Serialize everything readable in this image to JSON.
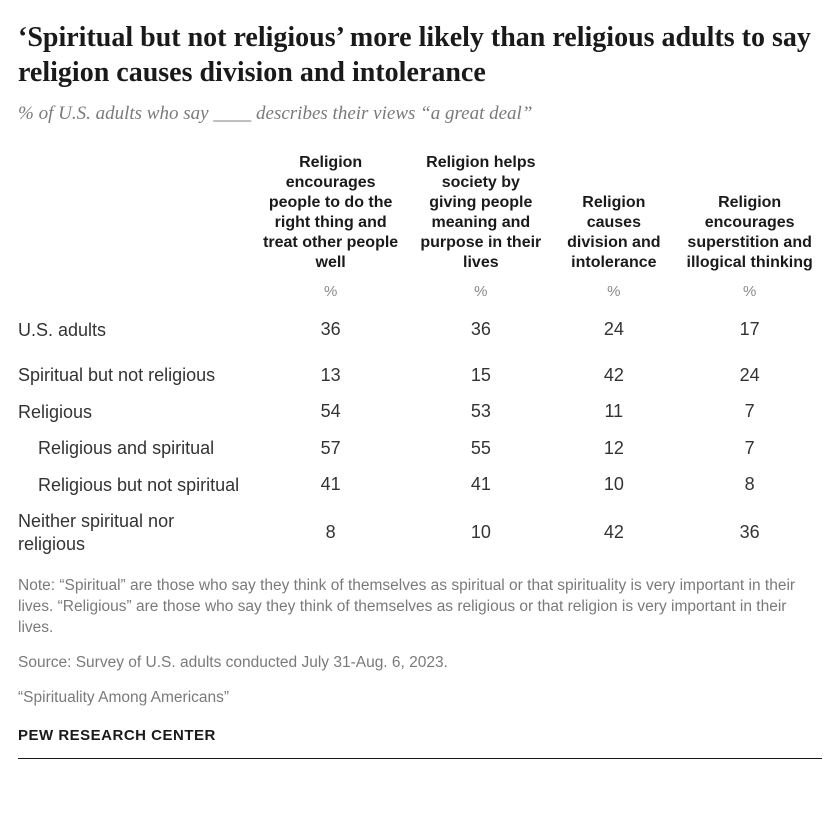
{
  "title": "‘Spiritual but not religious’ more likely than religious adults to say religion causes division and intolerance",
  "subtitle": "% of U.S. adults who say ____ describes their views “a great deal”",
  "table": {
    "columns": [
      "Religion encourages people to do the right thing and treat other people well",
      "Religion helps society by giving people meaning and purpose in their lives",
      "Religion causes division and intolerance",
      "Religion encourages superstition and illogical thinking"
    ],
    "pctLabel": "%",
    "rows": [
      {
        "label": "U.S. adults",
        "indent": false,
        "gap": false,
        "values": [
          36,
          36,
          24,
          17
        ]
      },
      {
        "label": "Spiritual but not religious",
        "indent": false,
        "gap": true,
        "values": [
          13,
          15,
          42,
          24
        ]
      },
      {
        "label": "Religious",
        "indent": false,
        "gap": false,
        "values": [
          54,
          53,
          11,
          7
        ]
      },
      {
        "label": "Religious and spiritual",
        "indent": true,
        "gap": false,
        "values": [
          57,
          55,
          12,
          7
        ]
      },
      {
        "label": "Religious but not spiritual",
        "indent": true,
        "gap": false,
        "values": [
          41,
          41,
          10,
          8
        ]
      },
      {
        "label": "Neither spiritual nor religious",
        "indent": false,
        "gap": false,
        "values": [
          8,
          10,
          42,
          36
        ]
      }
    ]
  },
  "note": "Note: “Spiritual” are those who say they think of themselves as spiritual or that spirituality is very important in their lives. “Religious” are those who say they think of themselves as religious or that religion is very important in their lives.",
  "source": "Source: Survey of U.S. adults conducted July 31-Aug. 6, 2023.",
  "reportTitle": "“Spirituality Among Americans”",
  "org": "PEW RESEARCH CENTER",
  "style": {
    "bg": "#ffffff",
    "titleColor": "#1a1a1a",
    "subtitleColor": "#7a7a7a",
    "bodyText": "#333333",
    "muted": "#7a7a7a",
    "ruleColor": "#1a1a1a",
    "titleFontSize": 28,
    "subtitleFontSize": 19,
    "headerFontSize": 16,
    "cellFontSize": 18,
    "noteFontSize": 15.5
  }
}
